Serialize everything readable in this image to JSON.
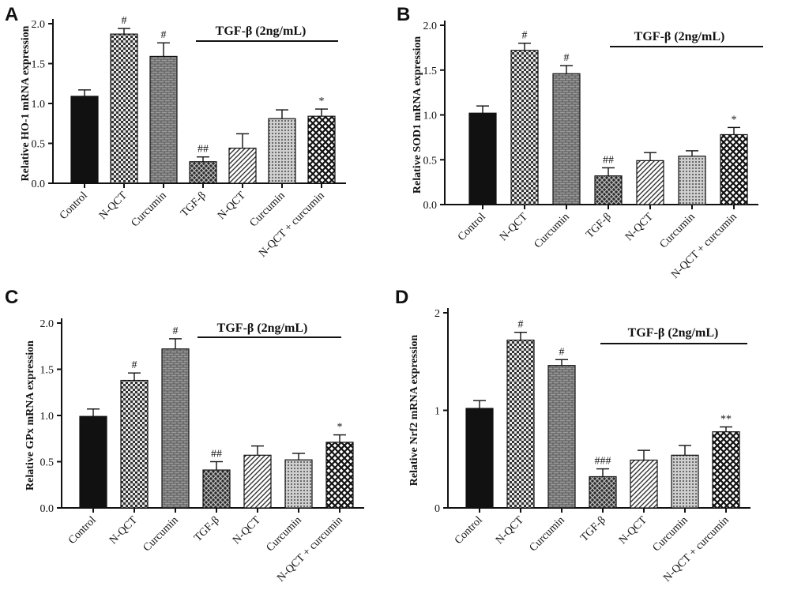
{
  "categories": [
    "Control",
    "N-QCT",
    "Curcumin",
    "TGF-β",
    "N-QCT",
    "Curcumin",
    "N-QCT + curcumin"
  ],
  "treatment_label": "TGF-β (2ng/mL)",
  "chart_data": [
    {
      "type": "bar",
      "panel": "A",
      "ylabel": "Relative HO-1 mRNA expression",
      "ylim": [
        0,
        2.0
      ],
      "yticks": [
        "0.0",
        "0.5",
        "1.0",
        "1.5",
        "2.0"
      ],
      "yticks_values": [
        0,
        0.5,
        1.0,
        1.5,
        2.0
      ],
      "categories": [
        "Control",
        "N-QCT",
        "Curcumin",
        "TGF-β",
        "N-QCT",
        "Curcumin",
        "N-QCT + curcumin"
      ],
      "values": [
        1.09,
        1.87,
        1.59,
        0.27,
        0.44,
        0.81,
        0.84
      ],
      "errors": [
        0.08,
        0.07,
        0.17,
        0.06,
        0.18,
        0.11,
        0.09
      ],
      "annotations": [
        "",
        "#",
        "#",
        "##",
        "",
        "",
        "*"
      ]
    },
    {
      "type": "bar",
      "panel": "B",
      "ylabel": "Relative SOD1 mRNA expression",
      "ylim": [
        0,
        2.0
      ],
      "yticks": [
        "0.0",
        "0.5",
        "1.0",
        "1.5",
        "2.0"
      ],
      "yticks_values": [
        0,
        0.5,
        1.0,
        1.5,
        2.0
      ],
      "categories": [
        "Control",
        "N-QCT",
        "Curcumin",
        "TGF-β",
        "N-QCT",
        "Curcumin",
        "N-QCT + curcumin"
      ],
      "values": [
        1.02,
        1.72,
        1.46,
        0.32,
        0.49,
        0.54,
        0.78
      ],
      "errors": [
        0.08,
        0.08,
        0.09,
        0.09,
        0.09,
        0.06,
        0.08
      ],
      "annotations": [
        "",
        "#",
        "#",
        "##",
        "",
        "",
        "*"
      ]
    },
    {
      "type": "bar",
      "panel": "C",
      "ylabel": "Relative GPx mRNA expression",
      "ylim": [
        0,
        2.0
      ],
      "yticks": [
        "0.0",
        "0.5",
        "1.0",
        "1.5",
        "2.0"
      ],
      "yticks_values": [
        0,
        0.5,
        1.0,
        1.5,
        2.0
      ],
      "categories": [
        "Control",
        "N-QCT",
        "Curcumin",
        "TGF-β",
        "N-QCT",
        "Curcumin",
        "N-QCT + curcumin"
      ],
      "values": [
        0.99,
        1.38,
        1.72,
        0.41,
        0.57,
        0.52,
        0.71
      ],
      "errors": [
        0.08,
        0.08,
        0.11,
        0.09,
        0.1,
        0.07,
        0.08
      ],
      "annotations": [
        "",
        "#",
        "#",
        "##",
        "",
        "",
        "*"
      ]
    },
    {
      "type": "bar",
      "panel": "D",
      "ylabel": "Relative Nrf2 mRNA expression",
      "ylim": [
        0,
        2.0
      ],
      "yticks": [
        "0",
        "1",
        "2"
      ],
      "yticks_values": [
        0,
        1,
        2
      ],
      "categories": [
        "Control",
        "N-QCT",
        "Curcumin",
        "TGF-β",
        "N-QCT",
        "Curcumin",
        "N-QCT + curcumin"
      ],
      "values": [
        1.02,
        1.72,
        1.46,
        0.32,
        0.49,
        0.54,
        0.78
      ],
      "errors": [
        0.08,
        0.08,
        0.06,
        0.08,
        0.1,
        0.1,
        0.05
      ],
      "annotations": [
        "",
        "#",
        "#",
        "###",
        "",
        "",
        "**"
      ]
    }
  ]
}
